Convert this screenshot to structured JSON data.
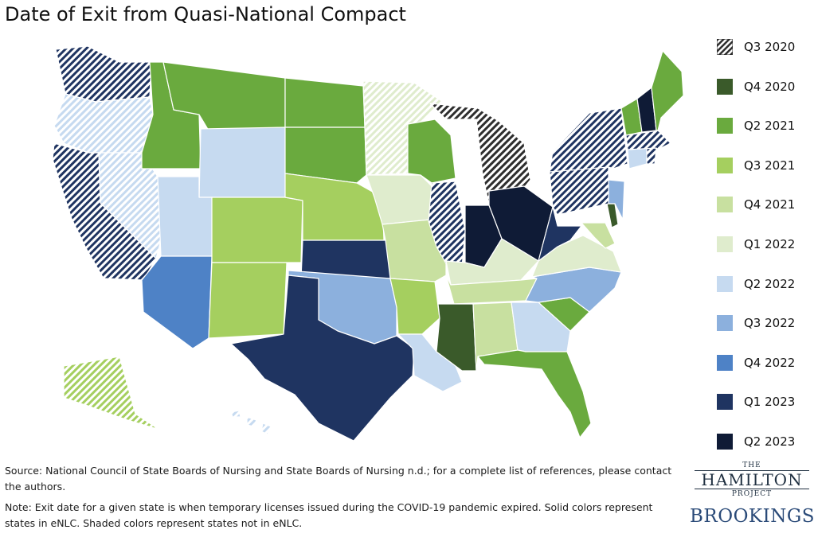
{
  "title": "Date of Exit from Quasi-National Compact",
  "colors": {
    "Q3 2020": "#2e2e2e",
    "Q4 2020": "#3a5a2a",
    "Q2 2021": "#6aaa3e",
    "Q3 2021": "#a5cf5f",
    "Q4 2021": "#c8e0a0",
    "Q1 2022": "#dfeccd",
    "Q2 2022": "#c6daf0",
    "Q3 2022": "#8cb0dd",
    "Q4 2022": "#4e82c6",
    "Q1 2023": "#1f3461",
    "Q2 2023": "#0f1b36"
  },
  "legend": [
    {
      "label": "Q3 2020",
      "pattern": "shaded"
    },
    {
      "label": "Q4 2020",
      "pattern": "solid"
    },
    {
      "label": "Q2 2021",
      "pattern": "solid"
    },
    {
      "label": "Q3 2021",
      "pattern": "solid"
    },
    {
      "label": "Q4 2021",
      "pattern": "solid"
    },
    {
      "label": "Q1 2022",
      "pattern": "solid"
    },
    {
      "label": "Q2 2022",
      "pattern": "solid"
    },
    {
      "label": "Q3 2022",
      "pattern": "solid"
    },
    {
      "label": "Q4 2022",
      "pattern": "solid"
    },
    {
      "label": "Q1 2023",
      "pattern": "solid"
    },
    {
      "label": "Q2 2023",
      "pattern": "solid"
    }
  ],
  "states": [
    {
      "state": "WA",
      "period": "Q1 2023",
      "shaded": true
    },
    {
      "state": "OR",
      "period": "Q2 2022",
      "shaded": true
    },
    {
      "state": "CA",
      "period": "Q1 2023",
      "shaded": true
    },
    {
      "state": "NV",
      "period": "Q2 2022",
      "shaded": true
    },
    {
      "state": "ID",
      "period": "Q2 2021",
      "shaded": false
    },
    {
      "state": "MT",
      "period": "Q2 2021",
      "shaded": false
    },
    {
      "state": "WY",
      "period": "Q2 2022",
      "shaded": false
    },
    {
      "state": "UT",
      "period": "Q2 2022",
      "shaded": false
    },
    {
      "state": "AZ",
      "period": "Q4 2022",
      "shaded": false
    },
    {
      "state": "CO",
      "period": "Q3 2021",
      "shaded": false
    },
    {
      "state": "NM",
      "period": "Q3 2021",
      "shaded": false
    },
    {
      "state": "ND",
      "period": "Q2 2021",
      "shaded": false
    },
    {
      "state": "SD",
      "period": "Q2 2021",
      "shaded": false
    },
    {
      "state": "NE",
      "period": "Q3 2021",
      "shaded": false
    },
    {
      "state": "KS",
      "period": "Q1 2023",
      "shaded": false
    },
    {
      "state": "OK",
      "period": "Q3 2022",
      "shaded": false
    },
    {
      "state": "TX",
      "period": "Q1 2023",
      "shaded": false
    },
    {
      "state": "MN",
      "period": "Q1 2022",
      "shaded": true
    },
    {
      "state": "IA",
      "period": "Q1 2022",
      "shaded": false
    },
    {
      "state": "MO",
      "period": "Q4 2021",
      "shaded": false
    },
    {
      "state": "AR",
      "period": "Q3 2021",
      "shaded": false
    },
    {
      "state": "LA",
      "period": "Q2 2022",
      "shaded": false
    },
    {
      "state": "WI",
      "period": "Q2 2021",
      "shaded": false
    },
    {
      "state": "IL",
      "period": "Q1 2023",
      "shaded": true
    },
    {
      "state": "MI",
      "period": "Q3 2020",
      "shaded": true
    },
    {
      "state": "IN",
      "period": "Q2 2023",
      "shaded": false
    },
    {
      "state": "OH",
      "period": "Q2 2023",
      "shaded": false
    },
    {
      "state": "KY",
      "period": "Q1 2022",
      "shaded": false
    },
    {
      "state": "TN",
      "period": "Q4 2021",
      "shaded": false
    },
    {
      "state": "MS",
      "period": "Q4 2020",
      "shaded": false
    },
    {
      "state": "AL",
      "period": "Q4 2021",
      "shaded": false
    },
    {
      "state": "GA",
      "period": "Q2 2022",
      "shaded": false
    },
    {
      "state": "FL",
      "period": "Q2 2021",
      "shaded": false
    },
    {
      "state": "SC",
      "period": "Q2 2021",
      "shaded": false
    },
    {
      "state": "NC",
      "period": "Q3 2022",
      "shaded": false
    },
    {
      "state": "VA",
      "period": "Q1 2022",
      "shaded": false
    },
    {
      "state": "WV",
      "period": "Q1 2023",
      "shaded": false
    },
    {
      "state": "MD",
      "period": "Q4 2021",
      "shaded": false
    },
    {
      "state": "DE",
      "period": "Q4 2020",
      "shaded": false
    },
    {
      "state": "NJ",
      "period": "Q3 2022",
      "shaded": false
    },
    {
      "state": "PA",
      "period": "Q1 2023",
      "shaded": true
    },
    {
      "state": "NY",
      "period": "Q1 2023",
      "shaded": true
    },
    {
      "state": "CT",
      "period": "Q2 2022",
      "shaded": false
    },
    {
      "state": "RI",
      "period": "Q1 2023",
      "shaded": true
    },
    {
      "state": "MA",
      "period": "Q1 2023",
      "shaded": true
    },
    {
      "state": "VT",
      "period": "Q2 2021",
      "shaded": false
    },
    {
      "state": "NH",
      "period": "Q2 2023",
      "shaded": false
    },
    {
      "state": "ME",
      "period": "Q2 2021",
      "shaded": false
    },
    {
      "state": "AK",
      "period": "Q3 2021",
      "shaded": true
    },
    {
      "state": "HI",
      "period": "Q2 2022",
      "shaded": true
    }
  ],
  "source": "Source: National Council of State Boards of Nursing and State Boards of Nursing n.d.; for a complete list of references, please contact the authors.",
  "note": "Note: Exit date for a given state is when temporary licenses issued during the COVID-19 pandemic expired. Solid colors represent states in eNLC. Shaded colors represent states not in eNLC.",
  "logo": {
    "small": "THE",
    "main": "HAMILTON",
    "project": "PROJECT",
    "brookings": "BROOKINGS"
  }
}
